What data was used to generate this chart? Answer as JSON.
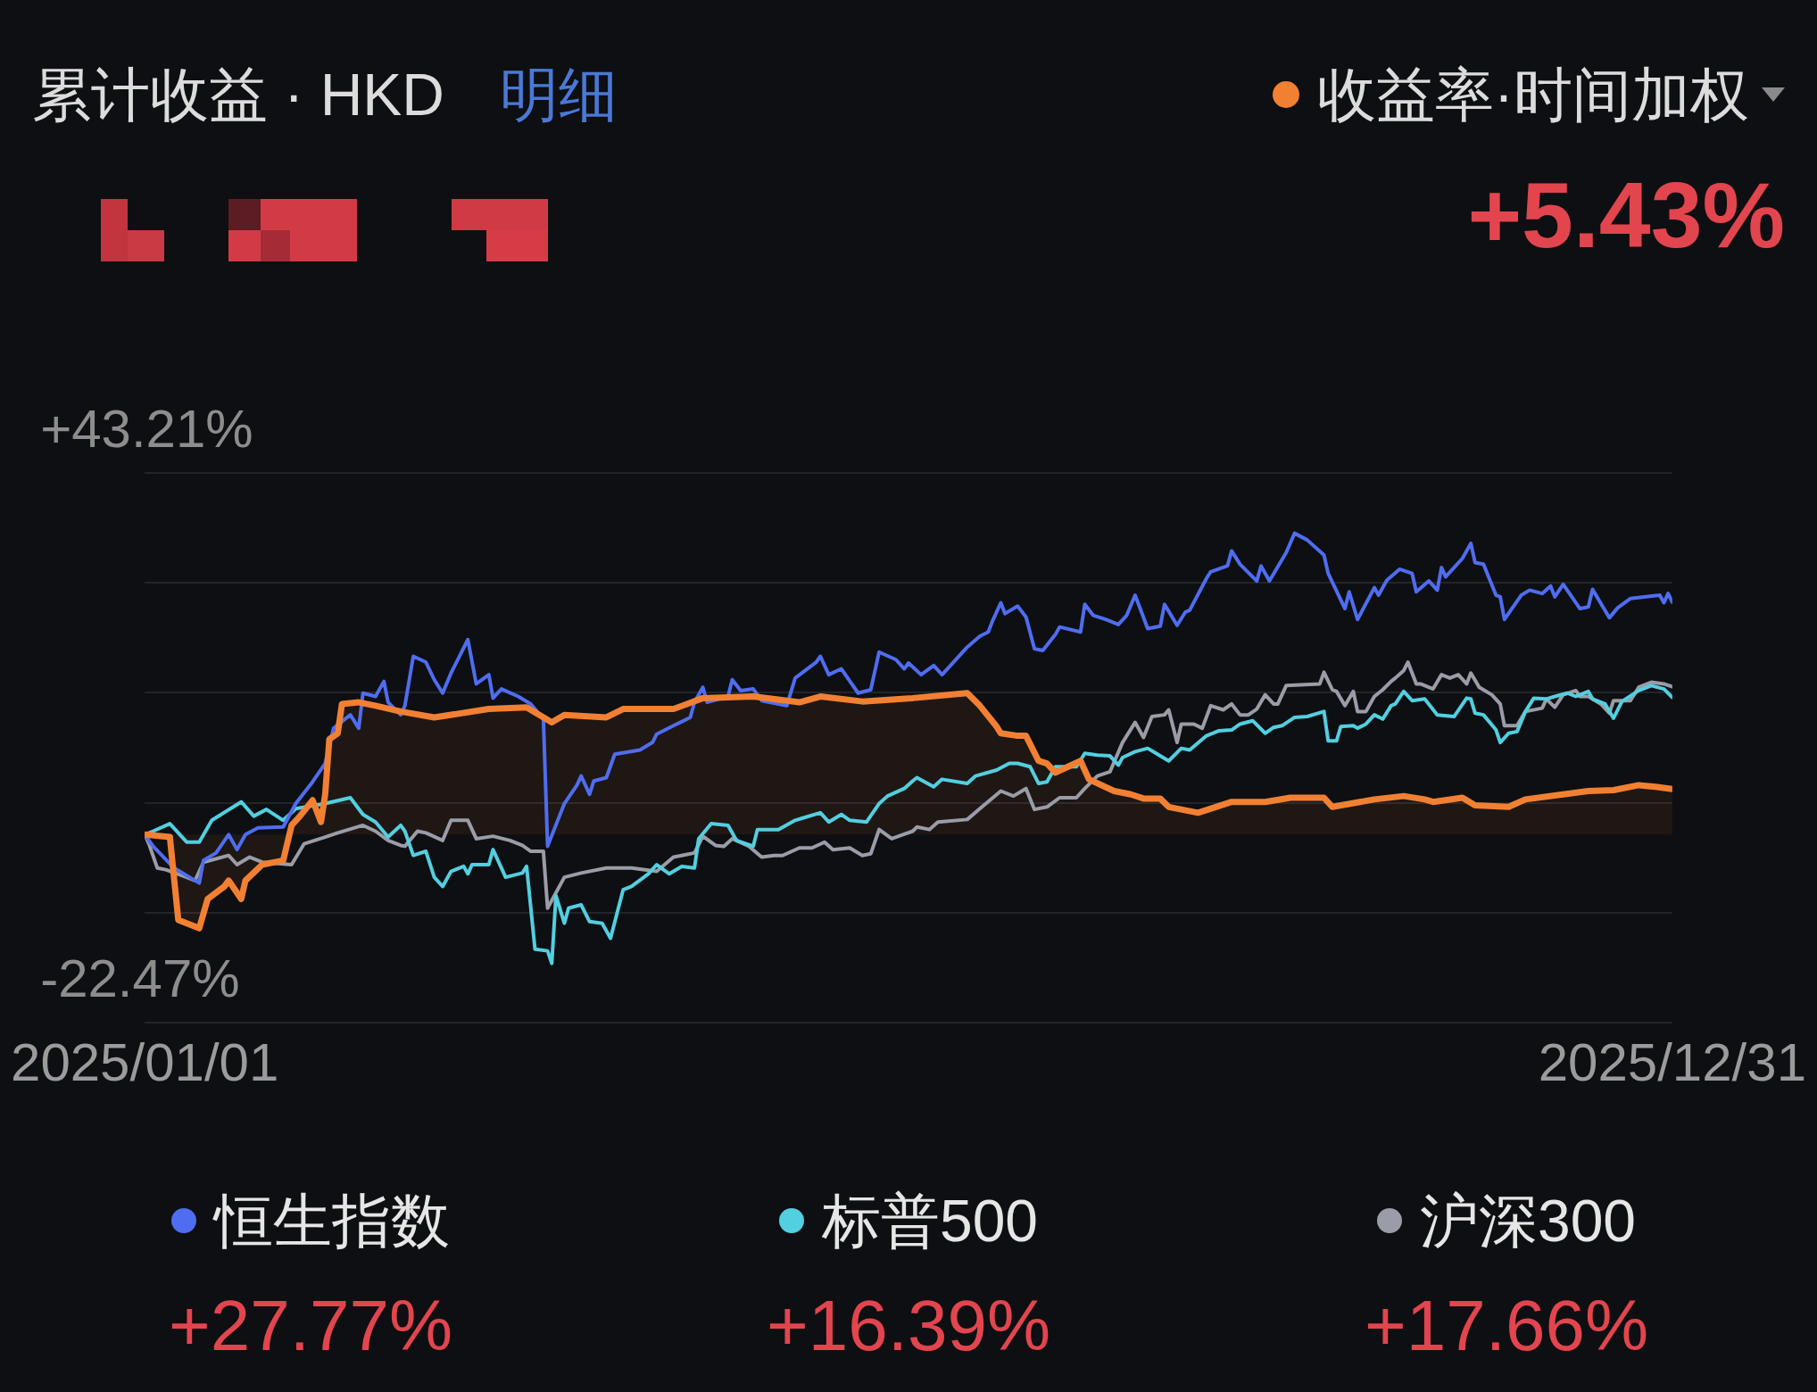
{
  "chart_data": {
    "type": "line",
    "title": "累计收益 · HKD",
    "annotations": [
      "明细",
      "+5.43%",
      "+27.77%",
      "+16.39%",
      "+17.66%"
    ],
    "xlim": [
      "2025-01-01",
      "2025-12-31"
    ],
    "xticks": [
      {
        "value": "2025-01-01",
        "label": "2025/01/01"
      },
      {
        "value": "2025-12-31",
        "label": "2025/12/31"
      }
    ],
    "ylim": [
      -22.47,
      43.21
    ],
    "yticks": [
      {
        "value": -22.47,
        "label": "-22.47%"
      },
      {
        "value": -9.33,
        "label": null
      },
      {
        "value": 3.8,
        "label": null
      },
      {
        "value": 16.94,
        "label": null
      },
      {
        "value": 30.07,
        "label": null
      },
      {
        "value": 43.21,
        "label": "+43.21%"
      }
    ],
    "grid": "y",
    "legend": "top right",
    "marker": "none",
    "series": [
      {
        "name": "收益率·时间加权",
        "type": "area",
        "color": "#f28032",
        "x": [
          "2025-01-01",
          "2025-01-07",
          "2025-01-09",
          "2025-01-14",
          "2025-01-16",
          "2025-01-20",
          "2025-01-21",
          "2025-01-24",
          "2025-01-25",
          "2025-01-29",
          "2025-02-03",
          "2025-02-05",
          "2025-02-07",
          "2025-02-10",
          "2025-02-12",
          "2025-02-13",
          "2025-02-14",
          "2025-02-16",
          "2025-02-17",
          "2025-02-21",
          "2025-02-25",
          "2025-03-03",
          "2025-03-11",
          "2025-03-24",
          "2025-04-02",
          "2025-04-08",
          "2025-04-11",
          "2025-04-21",
          "2025-04-25",
          "2025-05-07",
          "2025-05-14",
          "2025-05-26",
          "2025-06-06",
          "2025-06-11",
          "2025-06-21",
          "2025-07-03",
          "2025-07-16",
          "2025-07-19",
          "2025-07-23",
          "2025-07-24",
          "2025-07-28",
          "2025-07-30",
          "2025-08-02",
          "2025-08-04",
          "2025-08-06",
          "2025-08-09",
          "2025-08-12",
          "2025-08-14",
          "2025-08-20",
          "2025-08-24",
          "2025-08-27",
          "2025-08-31",
          "2025-09-02",
          "2025-09-09",
          "2025-09-17",
          "2025-09-25",
          "2025-10-01",
          "2025-10-09",
          "2025-10-11",
          "2025-10-21",
          "2025-10-28",
          "2025-11-02",
          "2025-11-04",
          "2025-11-11",
          "2025-11-14",
          "2025-11-22",
          "2025-11-26",
          "2025-12-05",
          "2025-12-11",
          "2025-12-17",
          "2025-12-23",
          "2025-12-27",
          "2025-12-31"
        ],
        "values": [
          0,
          -0.3,
          -10.2,
          -11.2,
          -7.7,
          -6.2,
          -5.5,
          -7.7,
          -5.5,
          -3.6,
          -3.1,
          1.1,
          2.2,
          4.1,
          1.5,
          4.8,
          11.4,
          12.1,
          15.6,
          15.8,
          15.4,
          14.7,
          14.0,
          15.0,
          15.2,
          13.4,
          14.3,
          14.0,
          15.0,
          15.0,
          16.3,
          16.5,
          15.8,
          16.5,
          15.9,
          16.3,
          16.9,
          15.4,
          12.9,
          12.1,
          11.8,
          11.8,
          8.8,
          8.5,
          7.4,
          8.1,
          8.8,
          6.6,
          5.2,
          4.8,
          4.3,
          4.3,
          3.3,
          2.6,
          3.9,
          3.9,
          4.4,
          4.4,
          3.3,
          4.2,
          4.6,
          4.2,
          3.9,
          4.4,
          3.5,
          3.3,
          4.2,
          4.8,
          5.2,
          5.3,
          5.9,
          5.7,
          5.43
        ]
      },
      {
        "name": "恒生指数",
        "type": "line",
        "color": "#4f6df0",
        "x": [
          "2025-01-01",
          "2025-01-03",
          "2025-01-08",
          "2025-01-14",
          "2025-01-15",
          "2025-01-18",
          "2025-01-21",
          "2025-01-23",
          "2025-01-25",
          "2025-01-28",
          "2025-02-03",
          "2025-02-06",
          "2025-02-10",
          "2025-02-13",
          "2025-02-15",
          "2025-02-19",
          "2025-02-21",
          "2025-02-22",
          "2025-02-25",
          "2025-02-27",
          "2025-02-28",
          "2025-03-03",
          "2025-03-04",
          "2025-03-06",
          "2025-03-09",
          "2025-03-11",
          "2025-03-13",
          "2025-03-15",
          "2025-03-19",
          "2025-03-21",
          "2025-03-24",
          "2025-03-25",
          "2025-03-27",
          "2025-03-31",
          "2025-04-03",
          "2025-04-06",
          "2025-04-07",
          "2025-04-11",
          "2025-04-14",
          "2025-04-15",
          "2025-04-17",
          "2025-04-18",
          "2025-04-21",
          "2025-04-23",
          "2025-04-29",
          "2025-05-02",
          "2025-05-03",
          "2025-05-07",
          "2025-05-11",
          "2025-05-12",
          "2025-05-14",
          "2025-05-15",
          "2025-05-20",
          "2025-05-21",
          "2025-05-23",
          "2025-05-26",
          "2025-05-28",
          "2025-06-03",
          "2025-06-05",
          "2025-06-10",
          "2025-06-11",
          "2025-06-13",
          "2025-06-16",
          "2025-06-20",
          "2025-06-23",
          "2025-06-25",
          "2025-06-29",
          "2025-07-01",
          "2025-07-02",
          "2025-07-05",
          "2025-07-08",
          "2025-07-10",
          "2025-07-12",
          "2025-07-16",
          "2025-07-19",
          "2025-07-21",
          "2025-07-22",
          "2025-07-24",
          "2025-07-25",
          "2025-07-28",
          "2025-07-30",
          "2025-08-01",
          "2025-08-03",
          "2025-08-06",
          "2025-08-07",
          "2025-08-12",
          "2025-08-13",
          "2025-08-15",
          "2025-08-18",
          "2025-08-21",
          "2025-08-23",
          "2025-08-25",
          "2025-08-28",
          "2025-08-31",
          "2025-09-01",
          "2025-09-04",
          "2025-09-06",
          "2025-09-07",
          "2025-09-11",
          "2025-09-12",
          "2025-09-16",
          "2025-09-17",
          "2025-09-19",
          "2025-09-23",
          "2025-09-24",
          "2025-09-26",
          "2025-09-30",
          "2025-10-02",
          "2025-10-05",
          "2025-10-09",
          "2025-10-10",
          "2025-10-14",
          "2025-10-15",
          "2025-10-17",
          "2025-10-21",
          "2025-10-22",
          "2025-10-24",
          "2025-10-27",
          "2025-10-30",
          "2025-10-31",
          "2025-11-03",
          "2025-11-05",
          "2025-11-06",
          "2025-11-07",
          "2025-11-11",
          "2025-11-13",
          "2025-11-14",
          "2025-11-16",
          "2025-11-19",
          "2025-11-20",
          "2025-11-21",
          "2025-11-25",
          "2025-11-27",
          "2025-11-30",
          "2025-12-02",
          "2025-12-03",
          "2025-12-05",
          "2025-12-09",
          "2025-12-11",
          "2025-12-12",
          "2025-12-16",
          "2025-12-18",
          "2025-12-21",
          "2025-12-28",
          "2025-12-29",
          "2025-12-30",
          "2025-12-31"
        ],
        "values": [
          0,
          -1.4,
          -4.0,
          -5.8,
          -3.1,
          -2.2,
          0,
          -1.8,
          0,
          0.8,
          0.9,
          3.7,
          6.3,
          8.5,
          12.7,
          14.3,
          12.7,
          16.9,
          16.5,
          18.3,
          15.8,
          14.3,
          15.4,
          21.3,
          20.6,
          18.5,
          16.9,
          19.3,
          23.3,
          18.0,
          19.1,
          16.3,
          17.4,
          16.5,
          15.6,
          13.8,
          -1.4,
          3.7,
          5.9,
          7.0,
          4.8,
          6.4,
          6.8,
          9.6,
          10.1,
          11.0,
          12.0,
          13.0,
          14.0,
          15.8,
          17.6,
          15.8,
          16.5,
          18.5,
          17.2,
          17.4,
          16.0,
          15.4,
          18.7,
          20.6,
          21.3,
          19.1,
          19.8,
          16.9,
          17.3,
          21.8,
          20.9,
          19.8,
          20.5,
          19.1,
          20.2,
          19.1,
          20.2,
          22.4,
          23.7,
          24.2,
          25.5,
          27.7,
          26.4,
          27.3,
          26.0,
          22.2,
          22.0,
          23.9,
          24.8,
          24.2,
          27.5,
          26.2,
          25.7,
          25.1,
          26.2,
          28.6,
          24.6,
          24.9,
          27.5,
          25.0,
          26.6,
          26.8,
          30.6,
          31.4,
          32.1,
          33.9,
          32.3,
          30.3,
          32.1,
          30.3,
          33.7,
          36.0,
          35.2,
          33.4,
          31.2,
          27.0,
          29.0,
          25.7,
          29.5,
          28.6,
          30.4,
          31.7,
          31.2,
          29.0,
          30.3,
          29.2,
          31.9,
          30.8,
          33.0,
          34.8,
          32.5,
          32.3,
          28.6,
          28.4,
          25.7,
          28.6,
          29.2,
          28.8,
          29.7,
          28.4,
          29.9,
          27.0,
          27.2,
          29.3,
          25.9,
          27.1,
          28.2,
          28.6,
          27.7,
          28.8,
          27.77
        ]
      },
      {
        "name": "标普500",
        "type": "line",
        "color": "#52cfe0",
        "x": [
          "2025-01-01",
          "2025-01-03",
          "2025-01-07",
          "2025-01-11",
          "2025-01-14",
          "2025-01-17",
          "2025-01-24",
          "2025-01-27",
          "2025-01-30",
          "2025-02-03",
          "2025-02-06",
          "2025-02-13",
          "2025-02-19",
          "2025-02-22",
          "2025-02-25",
          "2025-02-28",
          "2025-03-03",
          "2025-03-04",
          "2025-03-06",
          "2025-03-09",
          "2025-03-11",
          "2025-03-13",
          "2025-03-15",
          "2025-03-18",
          "2025-03-19",
          "2025-03-20",
          "2025-03-24",
          "2025-03-25",
          "2025-03-28",
          "2025-04-01",
          "2025-04-02",
          "2025-04-04",
          "2025-04-07",
          "2025-04-08",
          "2025-04-09",
          "2025-04-11",
          "2025-04-12",
          "2025-04-15",
          "2025-04-17",
          "2025-04-20",
          "2025-04-22",
          "2025-04-25",
          "2025-04-27",
          "2025-05-01",
          "2025-05-03",
          "2025-05-06",
          "2025-05-09",
          "2025-05-12",
          "2025-05-13",
          "2025-05-16",
          "2025-05-20",
          "2025-05-22",
          "2025-05-26",
          "2025-05-27",
          "2025-06-01",
          "2025-06-05",
          "2025-06-07",
          "2025-06-11",
          "2025-06-13",
          "2025-06-16",
          "2025-06-18",
          "2025-06-22",
          "2025-06-25",
          "2025-06-27",
          "2025-07-01",
          "2025-07-03",
          "2025-07-04",
          "2025-07-08",
          "2025-07-10",
          "2025-07-16",
          "2025-07-18",
          "2025-07-23",
          "2025-07-26",
          "2025-07-28",
          "2025-07-31",
          "2025-08-02",
          "2025-08-04",
          "2025-08-06",
          "2025-08-11",
          "2025-08-13",
          "2025-08-16",
          "2025-08-19",
          "2025-08-21",
          "2025-08-22",
          "2025-08-25",
          "2025-08-28",
          "2025-08-30",
          "2025-09-02",
          "2025-09-05",
          "2025-09-07",
          "2025-09-11",
          "2025-09-14",
          "2025-09-17",
          "2025-09-19",
          "2025-09-22",
          "2025-09-25",
          "2025-09-27",
          "2025-09-29",
          "2025-10-02",
          "2025-10-05",
          "2025-10-09",
          "2025-10-10",
          "2025-10-12",
          "2025-10-13",
          "2025-10-16",
          "2025-10-17",
          "2025-10-19",
          "2025-10-21",
          "2025-10-23",
          "2025-10-25",
          "2025-10-26",
          "2025-10-28",
          "2025-10-30",
          "2025-11-02",
          "2025-11-05",
          "2025-11-09",
          "2025-11-12",
          "2025-11-13",
          "2025-11-14",
          "2025-11-16",
          "2025-11-19",
          "2025-11-20",
          "2025-11-22",
          "2025-11-24",
          "2025-11-26",
          "2025-11-28",
          "2025-12-01",
          "2025-12-03",
          "2025-12-06",
          "2025-12-08",
          "2025-12-11",
          "2025-12-12",
          "2025-12-15",
          "2025-12-17",
          "2025-12-19",
          "2025-12-23",
          "2025-12-26",
          "2025-12-29",
          "2025-12-31"
        ],
        "values": [
          0,
          0.4,
          1.3,
          -0.9,
          -0.9,
          1.7,
          3.9,
          2.2,
          3.0,
          1.7,
          3.1,
          3.7,
          4.4,
          2.4,
          1.5,
          -0.3,
          1.1,
          0.4,
          -2.5,
          -2.0,
          -5.1,
          -6.2,
          -4.4,
          -3.8,
          -4.7,
          -3.6,
          -3.6,
          -1.8,
          -5.1,
          -4.6,
          -3.8,
          -13.7,
          -13.9,
          -15.4,
          -7.3,
          -10.6,
          -8.8,
          -8.4,
          -10.4,
          -10.6,
          -12.4,
          -6.6,
          -6.2,
          -4.7,
          -3.6,
          -4.7,
          -3.8,
          -4.0,
          -0.5,
          1.3,
          1.1,
          -0.7,
          -1.4,
          0.6,
          0.6,
          1.7,
          2.0,
          2.6,
          1.5,
          2.4,
          1.7,
          1.5,
          3.7,
          4.6,
          5.5,
          6.4,
          6.8,
          5.7,
          6.6,
          6.1,
          7.0,
          7.7,
          8.5,
          8.5,
          8.1,
          6.1,
          6.3,
          8.1,
          8.1,
          9.7,
          9.5,
          9.4,
          8.3,
          9.2,
          9.9,
          10.3,
          9.7,
          8.8,
          10.3,
          10.1,
          11.8,
          12.4,
          12.5,
          13.2,
          13.6,
          12.1,
          12.8,
          13.0,
          14.0,
          14.1,
          14.7,
          11.2,
          11.2,
          12.9,
          13.0,
          12.7,
          13.2,
          14.3,
          13.8,
          15.4,
          15.6,
          17.1,
          16.0,
          16.2,
          14.3,
          14.1,
          16.3,
          16.2,
          14.5,
          14.3,
          12.5,
          11.0,
          12.1,
          12.3,
          14.7,
          16.3,
          16.2,
          16.5,
          16.9,
          16.5,
          17.1,
          16.2,
          15.6,
          13.9,
          15.9,
          17.2,
          17.8,
          17.4,
          16.39
        ]
      },
      {
        "name": "沪深300",
        "type": "line",
        "color": "#9a9ca7",
        "x": [
          "2025-01-01",
          "2025-01-02",
          "2025-01-04",
          "2025-01-06",
          "2025-01-11",
          "2025-01-13",
          "2025-01-15",
          "2025-01-21",
          "2025-01-23",
          "2025-01-26",
          "2025-01-29",
          "2025-02-05",
          "2025-02-08",
          "2025-02-13",
          "2025-02-16",
          "2025-02-22",
          "2025-02-25",
          "2025-02-28",
          "2025-03-03",
          "2025-03-04",
          "2025-03-07",
          "2025-03-09",
          "2025-03-13",
          "2025-03-15",
          "2025-03-19",
          "2025-03-21",
          "2025-03-25",
          "2025-03-29",
          "2025-04-01",
          "2025-04-03",
          "2025-04-06",
          "2025-04-07",
          "2025-04-11",
          "2025-04-15",
          "2025-04-21",
          "2025-04-27",
          "2025-05-03",
          "2025-05-07",
          "2025-05-12",
          "2025-05-14",
          "2025-05-17",
          "2025-05-19",
          "2025-05-21",
          "2025-05-25",
          "2025-05-28",
          "2025-05-31",
          "2025-06-02",
          "2025-06-06",
          "2025-06-09",
          "2025-06-12",
          "2025-06-14",
          "2025-06-18",
          "2025-06-21",
          "2025-06-23",
          "2025-06-25",
          "2025-06-28",
          "2025-07-03",
          "2025-07-04",
          "2025-07-07",
          "2025-07-09",
          "2025-07-16",
          "2025-07-19",
          "2025-07-24",
          "2025-07-27",
          "2025-07-30",
          "2025-08-01",
          "2025-08-04",
          "2025-08-07",
          "2025-08-11",
          "2025-08-13",
          "2025-08-16",
          "2025-08-19",
          "2025-08-22",
          "2025-08-25",
          "2025-08-27",
          "2025-08-29",
          "2025-09-01",
          "2025-09-02",
          "2025-09-04",
          "2025-09-05",
          "2025-09-08",
          "2025-09-10",
          "2025-09-12",
          "2025-09-15",
          "2025-09-17",
          "2025-09-19",
          "2025-09-21",
          "2025-09-23",
          "2025-09-25",
          "2025-09-27",
          "2025-09-28",
          "2025-09-30",
          "2025-10-08",
          "2025-10-09",
          "2025-10-11",
          "2025-10-12",
          "2025-10-14",
          "2025-10-16",
          "2025-10-17",
          "2025-10-19",
          "2025-10-21",
          "2025-10-23",
          "2025-10-25",
          "2025-10-26",
          "2025-10-28",
          "2025-10-29",
          "2025-10-31",
          "2025-11-01",
          "2025-11-04",
          "2025-11-06",
          "2025-11-08",
          "2025-11-10",
          "2025-11-12",
          "2025-11-13",
          "2025-11-15",
          "2025-11-18",
          "2025-11-20",
          "2025-11-21",
          "2025-11-24",
          "2025-11-26",
          "2025-11-30",
          "2025-12-01",
          "2025-12-03",
          "2025-12-05",
          "2025-12-08",
          "2025-12-09",
          "2025-12-11",
          "2025-12-14",
          "2025-12-16",
          "2025-12-17",
          "2025-12-21",
          "2025-12-23",
          "2025-12-26",
          "2025-12-29",
          "2025-12-31"
        ],
        "values": [
          0,
          -1.1,
          -4.0,
          -4.2,
          -5.1,
          -5.5,
          -3.3,
          -2.5,
          -3.6,
          -2.7,
          -3.3,
          -3.6,
          -1.1,
          -0.3,
          0.2,
          1.1,
          0.4,
          -0.7,
          -1.3,
          -1.4,
          0.4,
          0.2,
          -0.7,
          1.7,
          1.7,
          -0.5,
          -0.2,
          -0.7,
          -1.3,
          -2.0,
          -2.0,
          -8.8,
          -5.1,
          -4.6,
          -4.0,
          -4.0,
          -4.4,
          -2.7,
          -2.2,
          -0.2,
          -1.3,
          -1.4,
          -0.5,
          -1.4,
          -2.7,
          -2.5,
          -2.5,
          -1.6,
          -1.6,
          -0.9,
          -1.8,
          -1.6,
          -2.5,
          -2.3,
          0.6,
          -0.5,
          0.4,
          0.9,
          0.6,
          1.5,
          1.8,
          3.1,
          5.2,
          4.6,
          5.5,
          3.0,
          3.3,
          4.4,
          4.4,
          5.5,
          7.0,
          7.5,
          11.0,
          13.4,
          11.6,
          14.1,
          14.3,
          14.9,
          11.0,
          13.2,
          13.2,
          12.7,
          15.4,
          14.9,
          15.6,
          14.3,
          14.3,
          15.0,
          16.7,
          15.6,
          15.6,
          17.8,
          18.0,
          19.4,
          17.3,
          17.1,
          15.4,
          17.1,
          14.7,
          14.7,
          16.5,
          17.3,
          18.3,
          18.7,
          19.6,
          20.6,
          18.0,
          18.0,
          17.4,
          19.1,
          18.7,
          19.1,
          18.0,
          19.3,
          17.6,
          16.7,
          15.6,
          13.0,
          13.0,
          14.7,
          15.1,
          16.2,
          15.2,
          16.7,
          17.2,
          16.5,
          16.5,
          15.6,
          14.5,
          16.0,
          16.0,
          17.6,
          18.2,
          18.0,
          17.66
        ]
      }
    ]
  }
}
